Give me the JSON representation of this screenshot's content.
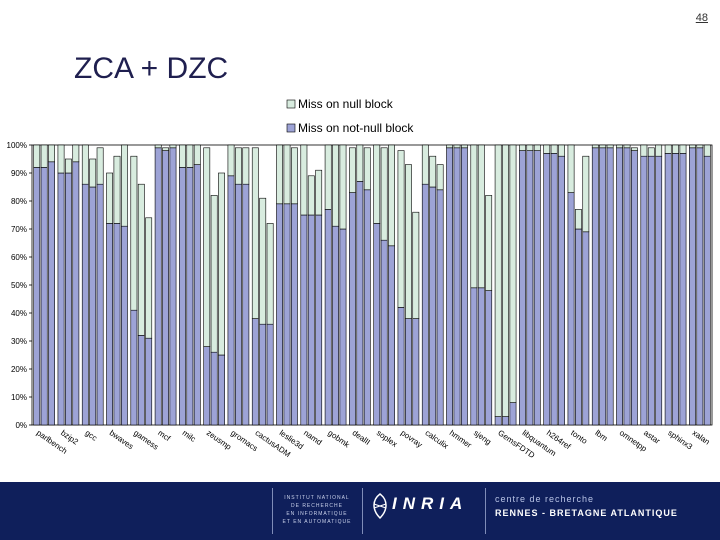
{
  "page": {
    "number": "48",
    "title": "ZCA + DZC"
  },
  "chart_data": {
    "type": "bar",
    "stacked": true,
    "title": "",
    "xlabel": "",
    "ylabel": "",
    "ylim": [
      0,
      100
    ],
    "y_ticks": [
      "0%",
      "10%",
      "20%",
      "30%",
      "40%",
      "50%",
      "60%",
      "70%",
      "80%",
      "90%",
      "100%"
    ],
    "legend": {
      "position": "top-center",
      "entries": [
        "Miss on null block",
        "Miss on not-null block"
      ]
    },
    "colors": {
      "null": "#d8ecdf",
      "not_null": "#9da3d6",
      "stroke": "#000000"
    },
    "categories": [
      "parlbench",
      "bzip2",
      "gcc",
      "bwaves",
      "gamess",
      "mcf",
      "milc",
      "zeusmp",
      "gromacs",
      "cactusADM",
      "leslie3d",
      "namd",
      "gobmk",
      "dealII",
      "soplex",
      "povray",
      "calculix",
      "hmmer",
      "sjeng",
      "GemsFDTD",
      "libquantum",
      "h264ref",
      "tonto",
      "lbm",
      "omnetpp",
      "astar",
      "sphinx3",
      "xalan"
    ],
    "series": [
      {
        "name": "Miss on null block",
        "values": [
          [
            8,
            8,
            6
          ],
          [
            10,
            5,
            6
          ],
          [
            14,
            10,
            13
          ],
          [
            18,
            24,
            29
          ],
          [
            55,
            54,
            43
          ],
          [
            1,
            1,
            1
          ],
          [
            8,
            8,
            7
          ],
          [
            71,
            56,
            65
          ],
          [
            11,
            13,
            13
          ],
          [
            61,
            45,
            36
          ],
          [
            21,
            21,
            20
          ],
          [
            25,
            14,
            16
          ],
          [
            23,
            29,
            30
          ],
          [
            16,
            13,
            15
          ],
          [
            28,
            33,
            36
          ],
          [
            56,
            55,
            38
          ],
          [
            14,
            11,
            9
          ],
          [
            1,
            1,
            1
          ],
          [
            51,
            51,
            34
          ],
          [
            97,
            97,
            92
          ],
          [
            2,
            2,
            2
          ],
          [
            3,
            3,
            4
          ],
          [
            17,
            7,
            27
          ],
          [
            1,
            1,
            1
          ],
          [
            1,
            1,
            1
          ],
          [
            4,
            3,
            4
          ],
          [
            3,
            3,
            3
          ],
          [
            1,
            1,
            4
          ]
        ]
      },
      {
        "name": "Miss on not-null block",
        "values": [
          [
            92,
            92,
            94
          ],
          [
            90,
            90,
            94
          ],
          [
            86,
            85,
            86
          ],
          [
            72,
            72,
            71
          ],
          [
            41,
            32,
            31
          ],
          [
            99,
            98,
            99
          ],
          [
            92,
            92,
            93
          ],
          [
            28,
            26,
            25
          ],
          [
            89,
            86,
            86
          ],
          [
            38,
            36,
            36
          ],
          [
            79,
            79,
            79
          ],
          [
            75,
            75,
            75
          ],
          [
            77,
            71,
            70
          ],
          [
            83,
            87,
            84
          ],
          [
            72,
            66,
            64
          ],
          [
            42,
            38,
            38
          ],
          [
            86,
            85,
            84
          ],
          [
            99,
            99,
            99
          ],
          [
            49,
            49,
            48
          ],
          [
            3,
            3,
            8
          ],
          [
            98,
            98,
            98
          ],
          [
            97,
            97,
            96
          ],
          [
            83,
            70,
            69
          ],
          [
            99,
            99,
            99
          ],
          [
            99,
            99,
            98
          ],
          [
            96,
            96,
            96
          ],
          [
            97,
            97,
            97
          ],
          [
            99,
            99,
            96
          ]
        ]
      }
    ]
  },
  "footer": {
    "institute_line1": "INSTITUT NATIONAL",
    "institute_line2": "DE RECHERCHE",
    "institute_line3": "EN INFORMATIQUE",
    "institute_line4": "ET EN AUTOMATIQUE",
    "logo_text": "INRIA",
    "centre_line1": "centre de recherche",
    "centre_line2": "RENNES - BRETAGNE ATLANTIQUE"
  }
}
